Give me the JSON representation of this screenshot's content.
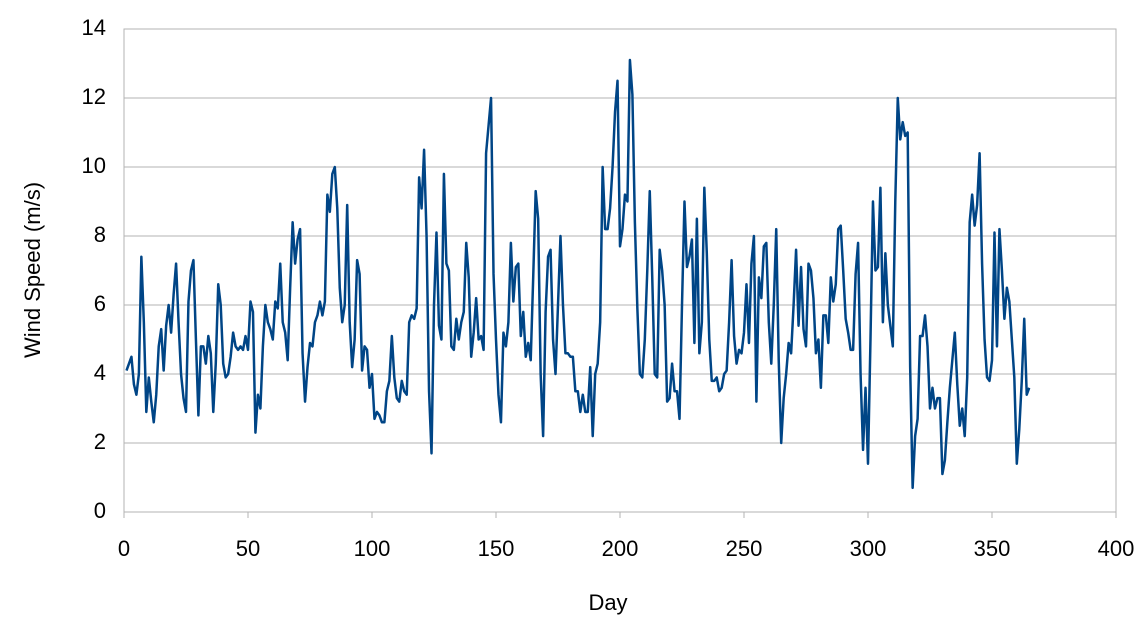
{
  "chart_data": {
    "type": "line",
    "x_label": "Day",
    "y_label": "Wind Speed (m/s)",
    "xlim": [
      0,
      400
    ],
    "xticks": [
      0,
      50,
      100,
      150,
      200,
      250,
      300,
      350,
      400
    ],
    "ylim": [
      0,
      14
    ],
    "yticks": [
      0,
      2,
      4,
      6,
      8,
      10,
      12,
      14
    ],
    "grid": true,
    "x": [
      1,
      2,
      3,
      4,
      5,
      6,
      7,
      8,
      9,
      10,
      11,
      12,
      13,
      14,
      15,
      16,
      17,
      18,
      19,
      20,
      21,
      22,
      23,
      24,
      25,
      26,
      27,
      28,
      29,
      30,
      31,
      32,
      33,
      34,
      35,
      36,
      37,
      38,
      39,
      40,
      41,
      42,
      43,
      44,
      45,
      46,
      47,
      48,
      49,
      50,
      51,
      52,
      53,
      54,
      55,
      56,
      57,
      58,
      59,
      60,
      61,
      62,
      63,
      64,
      65,
      66,
      67,
      68,
      69,
      70,
      71,
      72,
      73,
      74,
      75,
      76,
      77,
      78,
      79,
      80,
      81,
      82,
      83,
      84,
      85,
      86,
      87,
      88,
      89,
      90,
      91,
      92,
      93,
      94,
      95,
      96,
      97,
      98,
      99,
      100,
      101,
      102,
      103,
      104,
      105,
      106,
      107,
      108,
      109,
      110,
      111,
      112,
      113,
      114,
      115,
      116,
      117,
      118,
      119,
      120,
      121,
      122,
      123,
      124,
      125,
      126,
      127,
      128,
      129,
      130,
      131,
      132,
      133,
      134,
      135,
      136,
      137,
      138,
      139,
      140,
      141,
      142,
      143,
      144,
      145,
      146,
      147,
      148,
      149,
      150,
      151,
      152,
      153,
      154,
      155,
      156,
      157,
      158,
      159,
      160,
      161,
      162,
      163,
      164,
      165,
      166,
      167,
      168,
      169,
      170,
      171,
      172,
      173,
      174,
      175,
      176,
      177,
      178,
      179,
      180,
      181,
      182,
      183,
      184,
      185,
      186,
      187,
      188,
      189,
      190,
      191,
      192,
      193,
      194,
      195,
      196,
      197,
      198,
      199,
      200,
      201,
      202,
      203,
      204,
      205,
      206,
      207,
      208,
      209,
      210,
      211,
      212,
      213,
      214,
      215,
      216,
      217,
      218,
      219,
      220,
      221,
      222,
      223,
      224,
      225,
      226,
      227,
      228,
      229,
      230,
      231,
      232,
      233,
      234,
      235,
      236,
      237,
      238,
      239,
      240,
      241,
      242,
      243,
      244,
      245,
      246,
      247,
      248,
      249,
      250,
      251,
      252,
      253,
      254,
      255,
      256,
      257,
      258,
      259,
      260,
      261,
      262,
      263,
      264,
      265,
      266,
      267,
      268,
      269,
      270,
      271,
      272,
      273,
      274,
      275,
      276,
      277,
      278,
      279,
      280,
      281,
      282,
      283,
      284,
      285,
      286,
      287,
      288,
      289,
      290,
      291,
      292,
      293,
      294,
      295,
      296,
      297,
      298,
      299,
      300,
      301,
      302,
      303,
      304,
      305,
      306,
      307,
      308,
      309,
      310,
      311,
      312,
      313,
      314,
      315,
      316,
      317,
      318,
      319,
      320,
      321,
      322,
      323,
      324,
      325,
      326,
      327,
      328,
      329,
      330,
      331,
      332,
      333,
      334,
      335,
      336,
      337,
      338,
      339,
      340,
      341,
      342,
      343,
      344,
      345,
      346,
      347,
      348,
      349,
      350,
      351,
      352,
      353,
      354,
      355,
      356,
      357,
      358,
      359,
      360,
      361,
      362,
      363,
      364,
      365
    ],
    "series": [
      {
        "color": "#004586",
        "values": [
          4.1,
          4.3,
          4.5,
          3.7,
          3.4,
          4.0,
          7.4,
          5.5,
          2.9,
          3.9,
          3.2,
          2.6,
          3.4,
          4.8,
          5.3,
          4.1,
          5.4,
          6.0,
          5.2,
          6.3,
          7.2,
          5.5,
          4.0,
          3.3,
          2.9,
          6.1,
          7.0,
          7.3,
          5.0,
          2.8,
          4.8,
          4.8,
          4.3,
          5.1,
          4.6,
          2.9,
          4.3,
          6.6,
          6.0,
          4.3,
          3.9,
          4.0,
          4.5,
          5.2,
          4.8,
          4.7,
          4.8,
          4.7,
          5.1,
          4.7,
          6.1,
          5.8,
          2.3,
          3.4,
          3.0,
          4.8,
          6.0,
          5.5,
          5.3,
          5.0,
          6.1,
          5.9,
          7.2,
          5.5,
          5.2,
          4.4,
          6.5,
          8.4,
          7.2,
          7.9,
          8.2,
          4.6,
          3.2,
          4.2,
          4.9,
          4.8,
          5.5,
          5.7,
          6.1,
          5.7,
          6.1,
          9.2,
          8.7,
          9.8,
          10.0,
          8.8,
          6.5,
          5.5,
          6.0,
          8.9,
          5.5,
          4.2,
          5.0,
          7.3,
          6.9,
          4.1,
          4.8,
          4.7,
          3.6,
          4.0,
          2.7,
          2.9,
          2.8,
          2.6,
          2.6,
          3.5,
          3.8,
          5.1,
          3.9,
          3.3,
          3.2,
          3.8,
          3.5,
          3.4,
          5.5,
          5.7,
          5.6,
          5.9,
          9.7,
          8.8,
          10.5,
          8.0,
          3.5,
          1.7,
          6.0,
          8.1,
          5.4,
          5.0,
          9.8,
          7.2,
          7.0,
          4.8,
          4.7,
          5.6,
          5.0,
          5.5,
          5.8,
          7.8,
          6.8,
          4.5,
          5.2,
          6.2,
          5.0,
          5.1,
          4.7,
          10.4,
          11.2,
          12.0,
          6.9,
          5.0,
          3.4,
          2.6,
          5.2,
          4.8,
          5.5,
          7.8,
          6.1,
          7.1,
          7.2,
          5.1,
          5.8,
          4.5,
          4.9,
          4.4,
          6.8,
          9.3,
          8.5,
          4.0,
          2.2,
          5.8,
          7.4,
          7.6,
          5.0,
          4.0,
          6.0,
          8.0,
          6.0,
          4.6,
          4.6,
          4.5,
          4.5,
          3.5,
          3.5,
          2.9,
          3.4,
          2.9,
          2.9,
          4.2,
          2.2,
          4.0,
          4.3,
          5.5,
          10.0,
          8.2,
          8.2,
          8.8,
          10.0,
          11.6,
          12.5,
          7.7,
          8.2,
          9.2,
          9.0,
          13.1,
          12.1,
          8.4,
          5.9,
          4.0,
          3.9,
          5.0,
          7.0,
          9.3,
          6.8,
          4.0,
          3.9,
          7.6,
          7.0,
          6.0,
          3.2,
          3.3,
          4.3,
          3.5,
          3.5,
          2.7,
          6.0,
          9.0,
          7.1,
          7.4,
          7.9,
          4.9,
          8.5,
          4.6,
          5.5,
          9.4,
          7.5,
          5.0,
          3.8,
          3.8,
          3.9,
          3.5,
          3.6,
          4.0,
          4.1,
          5.5,
          7.3,
          5.1,
          4.3,
          4.7,
          4.6,
          5.2,
          6.6,
          4.9,
          7.2,
          8.0,
          3.2,
          6.8,
          6.2,
          7.7,
          7.8,
          5.5,
          4.3,
          6.0,
          8.2,
          4.4,
          2.0,
          3.3,
          4.0,
          4.9,
          4.6,
          6.0,
          7.6,
          5.4,
          7.1,
          5.3,
          4.8,
          7.2,
          7.0,
          6.2,
          4.6,
          5.0,
          3.6,
          5.7,
          5.7,
          4.9,
          6.8,
          6.1,
          6.6,
          8.2,
          8.3,
          7.0,
          5.6,
          5.2,
          4.7,
          4.7,
          6.9,
          7.8,
          4.0,
          1.8,
          3.6,
          1.4,
          5.0,
          9.0,
          7.0,
          7.1,
          9.4,
          5.5,
          7.5,
          6.0,
          5.4,
          4.8,
          9.0,
          12.0,
          10.8,
          11.3,
          10.9,
          11.0,
          4.2,
          0.7,
          2.2,
          2.7,
          5.1,
          5.1,
          5.7,
          4.8,
          3.0,
          3.6,
          3.0,
          3.3,
          3.3,
          1.1,
          1.5,
          2.6,
          3.6,
          4.4,
          5.2,
          3.7,
          2.5,
          3.0,
          2.2,
          3.9,
          8.4,
          9.2,
          8.3,
          8.9,
          10.4,
          7.2,
          5.0,
          3.9,
          3.8,
          4.4,
          8.1,
          4.8,
          8.2,
          7.0,
          5.6,
          6.5,
          6.1,
          5.0,
          3.9,
          1.4,
          2.4,
          3.8,
          5.6,
          3.4,
          3.6
        ]
      }
    ]
  }
}
